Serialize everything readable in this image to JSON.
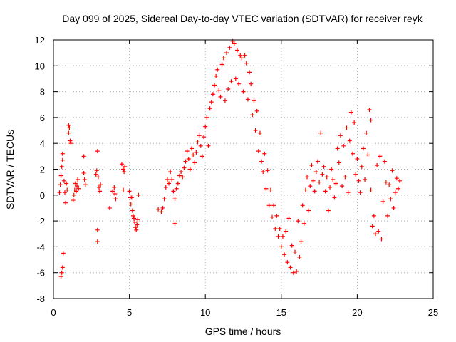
{
  "chart_data": {
    "type": "scatter",
    "title": "Day 099 of 2025, Sidereal Day-to-day VTEC variation (SDTVAR) for receiver reyk",
    "xlabel": "GPS time / hours",
    "ylabel": "SDTVAR / TECUs",
    "xlim": [
      0,
      25
    ],
    "ylim": [
      -8,
      12
    ],
    "xticks": [
      0,
      5,
      10,
      15,
      20,
      25
    ],
    "yticks": [
      -8,
      -6,
      -4,
      -2,
      0,
      2,
      4,
      6,
      8,
      10,
      12
    ],
    "grid": true,
    "marker": "+",
    "color": "#ff0000",
    "series": [
      {
        "name": "SDTVAR",
        "points": [
          [
            0.4,
            0.2
          ],
          [
            0.45,
            0.8
          ],
          [
            0.5,
            1.5
          ],
          [
            0.5,
            -6.3
          ],
          [
            0.55,
            2.2
          ],
          [
            0.55,
            -6.0
          ],
          [
            0.6,
            2.7
          ],
          [
            0.6,
            -5.6
          ],
          [
            0.6,
            3.2
          ],
          [
            0.65,
            -4.5
          ],
          [
            0.7,
            1.1
          ],
          [
            0.75,
            0.2
          ],
          [
            0.8,
            -0.6
          ],
          [
            0.85,
            0.9
          ],
          [
            0.9,
            0.4
          ],
          [
            1.0,
            5.4
          ],
          [
            1.0,
            4.8
          ],
          [
            1.05,
            5.2
          ],
          [
            1.1,
            4.2
          ],
          [
            1.15,
            4.0
          ],
          [
            1.3,
            -0.4
          ],
          [
            1.35,
            0.0
          ],
          [
            1.4,
            0.4
          ],
          [
            1.45,
            0.9
          ],
          [
            1.5,
            0.3
          ],
          [
            1.55,
            0.7
          ],
          [
            1.6,
            1.2
          ],
          [
            1.65,
            0.5
          ],
          [
            2.0,
            1.7
          ],
          [
            2.05,
            1.2
          ],
          [
            2.1,
            0.8
          ],
          [
            2.0,
            3.0
          ],
          [
            2.8,
            1.6
          ],
          [
            2.85,
            1.9
          ],
          [
            2.9,
            3.4
          ],
          [
            2.9,
            -2.7
          ],
          [
            2.9,
            -3.6
          ],
          [
            2.95,
            1.4
          ],
          [
            3.0,
            0.6
          ],
          [
            3.05,
            0.3
          ],
          [
            3.1,
            0.8
          ],
          [
            3.7,
            -1.0
          ],
          [
            3.9,
            0.3
          ],
          [
            4.0,
            0.6
          ],
          [
            4.05,
            0.1
          ],
          [
            4.1,
            -0.3
          ],
          [
            4.5,
            2.4
          ],
          [
            4.6,
            2.0
          ],
          [
            4.65,
            1.8
          ],
          [
            4.7,
            2.2
          ],
          [
            4.6,
            0.4
          ],
          [
            5.0,
            0.3
          ],
          [
            5.05,
            -0.2
          ],
          [
            5.1,
            -0.7
          ],
          [
            5.15,
            -0.2
          ],
          [
            5.2,
            -1.2
          ],
          [
            5.25,
            -1.6
          ],
          [
            5.3,
            -1.8
          ],
          [
            5.35,
            -2.1
          ],
          [
            5.4,
            -2.5
          ],
          [
            5.45,
            -2.7
          ],
          [
            5.5,
            -2.3
          ],
          [
            5.55,
            -1.9
          ],
          [
            5.6,
            0.0
          ],
          [
            6.9,
            -1.1
          ],
          [
            7.1,
            -1.3
          ],
          [
            7.2,
            -1.0
          ],
          [
            7.3,
            -0.3
          ],
          [
            7.4,
            0.6
          ],
          [
            7.5,
            1.2
          ],
          [
            7.6,
            0.9
          ],
          [
            7.7,
            1.8
          ],
          [
            7.8,
            1.2
          ],
          [
            7.9,
            0.3
          ],
          [
            8.0,
            -0.3
          ],
          [
            8.0,
            -2.2
          ],
          [
            8.1,
            0.5
          ],
          [
            8.2,
            0.9
          ],
          [
            8.3,
            1.5
          ],
          [
            8.4,
            1.8
          ],
          [
            8.5,
            1.4
          ],
          [
            8.6,
            2.1
          ],
          [
            8.7,
            2.6
          ],
          [
            8.8,
            3.4
          ],
          [
            8.9,
            2.8
          ],
          [
            9.0,
            2.0
          ],
          [
            9.1,
            3.6
          ],
          [
            9.2,
            3.1
          ],
          [
            9.3,
            2.5
          ],
          [
            9.4,
            3.3
          ],
          [
            9.5,
            4.1
          ],
          [
            9.6,
            4.6
          ],
          [
            9.7,
            3.8
          ],
          [
            9.8,
            3.0
          ],
          [
            9.9,
            4.5
          ],
          [
            10.0,
            5.3
          ],
          [
            10.1,
            6.0
          ],
          [
            10.2,
            3.8
          ],
          [
            10.3,
            6.7
          ],
          [
            10.4,
            7.2
          ],
          [
            10.5,
            7.8
          ],
          [
            10.6,
            8.5
          ],
          [
            10.7,
            9.2
          ],
          [
            10.8,
            9.7
          ],
          [
            10.9,
            8.1
          ],
          [
            11.0,
            7.6
          ],
          [
            11.1,
            10.1
          ],
          [
            11.2,
            10.6
          ],
          [
            11.3,
            7.3
          ],
          [
            11.4,
            11.0
          ],
          [
            11.5,
            8.2
          ],
          [
            11.6,
            11.4
          ],
          [
            11.7,
            8.8
          ],
          [
            11.8,
            11.9
          ],
          [
            11.9,
            11.7
          ],
          [
            12.0,
            9.0
          ],
          [
            12.1,
            11.2
          ],
          [
            12.2,
            8.6
          ],
          [
            12.3,
            10.8
          ],
          [
            12.4,
            10.6
          ],
          [
            12.5,
            8.0
          ],
          [
            12.6,
            10.8
          ],
          [
            12.7,
            10.2
          ],
          [
            12.8,
            7.4
          ],
          [
            12.9,
            9.5
          ],
          [
            13.0,
            8.6
          ],
          [
            13.1,
            6.2
          ],
          [
            13.2,
            7.3
          ],
          [
            13.3,
            5.0
          ],
          [
            13.4,
            6.5
          ],
          [
            13.5,
            3.4
          ],
          [
            13.6,
            4.8
          ],
          [
            13.7,
            2.6
          ],
          [
            13.8,
            1.8
          ],
          [
            13.9,
            3.2
          ],
          [
            14.0,
            0.5
          ],
          [
            14.1,
            1.9
          ],
          [
            14.2,
            -0.8
          ],
          [
            14.3,
            0.4
          ],
          [
            14.4,
            -1.7
          ],
          [
            14.5,
            -0.8
          ],
          [
            14.6,
            -2.6
          ],
          [
            14.7,
            -1.6
          ],
          [
            14.8,
            -3.2
          ],
          [
            14.9,
            -2.6
          ],
          [
            15.0,
            -4.0
          ],
          [
            15.1,
            -3.2
          ],
          [
            15.2,
            -4.6
          ],
          [
            15.3,
            -2.8
          ],
          [
            15.4,
            -5.2
          ],
          [
            15.5,
            -1.8
          ],
          [
            15.6,
            -5.6
          ],
          [
            15.7,
            -3.9
          ],
          [
            15.8,
            -6.0
          ],
          [
            15.9,
            -4.4
          ],
          [
            16.0,
            -5.9
          ],
          [
            16.1,
            -2.0
          ],
          [
            16.2,
            -4.8
          ],
          [
            16.3,
            -3.6
          ],
          [
            16.4,
            -0.8
          ],
          [
            16.5,
            -2.2
          ],
          [
            16.6,
            0.4
          ],
          [
            16.7,
            1.4
          ],
          [
            16.8,
            -1.2
          ],
          [
            16.9,
            0.7
          ],
          [
            17.0,
            2.3
          ],
          [
            17.1,
            1.1
          ],
          [
            17.2,
            0.3
          ],
          [
            17.3,
            1.8
          ],
          [
            17.4,
            2.6
          ],
          [
            17.5,
            1.0
          ],
          [
            17.6,
            4.8
          ],
          [
            17.7,
            1.6
          ],
          [
            17.8,
            2.2
          ],
          [
            17.9,
            0.3
          ],
          [
            18.0,
            1.4
          ],
          [
            18.1,
            -1.2
          ],
          [
            18.2,
            0.6
          ],
          [
            18.3,
            2.0
          ],
          [
            18.4,
            1.2
          ],
          [
            18.5,
            -0.2
          ],
          [
            18.6,
            0.9
          ],
          [
            18.7,
            3.6
          ],
          [
            18.8,
            2.5
          ],
          [
            18.9,
            4.6
          ],
          [
            19.0,
            0.7
          ],
          [
            19.1,
            3.8
          ],
          [
            19.2,
            1.4
          ],
          [
            19.3,
            5.2
          ],
          [
            19.4,
            0.2
          ],
          [
            19.5,
            4.2
          ],
          [
            19.6,
            6.4
          ],
          [
            19.7,
            3.2
          ],
          [
            19.8,
            5.6
          ],
          [
            19.9,
            1.6
          ],
          [
            20.0,
            2.8
          ],
          [
            20.1,
            1.1
          ],
          [
            20.2,
            0.2
          ],
          [
            20.3,
            2.2
          ],
          [
            20.4,
            3.6
          ],
          [
            20.5,
            1.2
          ],
          [
            20.6,
            4.8
          ],
          [
            20.7,
            3.1
          ],
          [
            20.8,
            6.6
          ],
          [
            20.9,
            5.8
          ],
          [
            20.9,
            0.4
          ],
          [
            21.0,
            -2.4
          ],
          [
            21.1,
            -1.6
          ],
          [
            21.2,
            -3.0
          ],
          [
            21.3,
            2.3
          ],
          [
            21.4,
            -2.8
          ],
          [
            21.5,
            3.0
          ],
          [
            21.6,
            -3.4
          ],
          [
            21.7,
            -0.5
          ],
          [
            21.8,
            2.6
          ],
          [
            21.9,
            1.0
          ],
          [
            22.0,
            -1.6
          ],
          [
            22.1,
            0.8
          ],
          [
            22.2,
            -0.3
          ],
          [
            22.3,
            1.9
          ],
          [
            22.4,
            -1.0
          ],
          [
            22.5,
            0.2
          ],
          [
            22.6,
            1.3
          ],
          [
            22.7,
            0.5
          ],
          [
            22.8,
            1.1
          ]
        ]
      }
    ]
  }
}
